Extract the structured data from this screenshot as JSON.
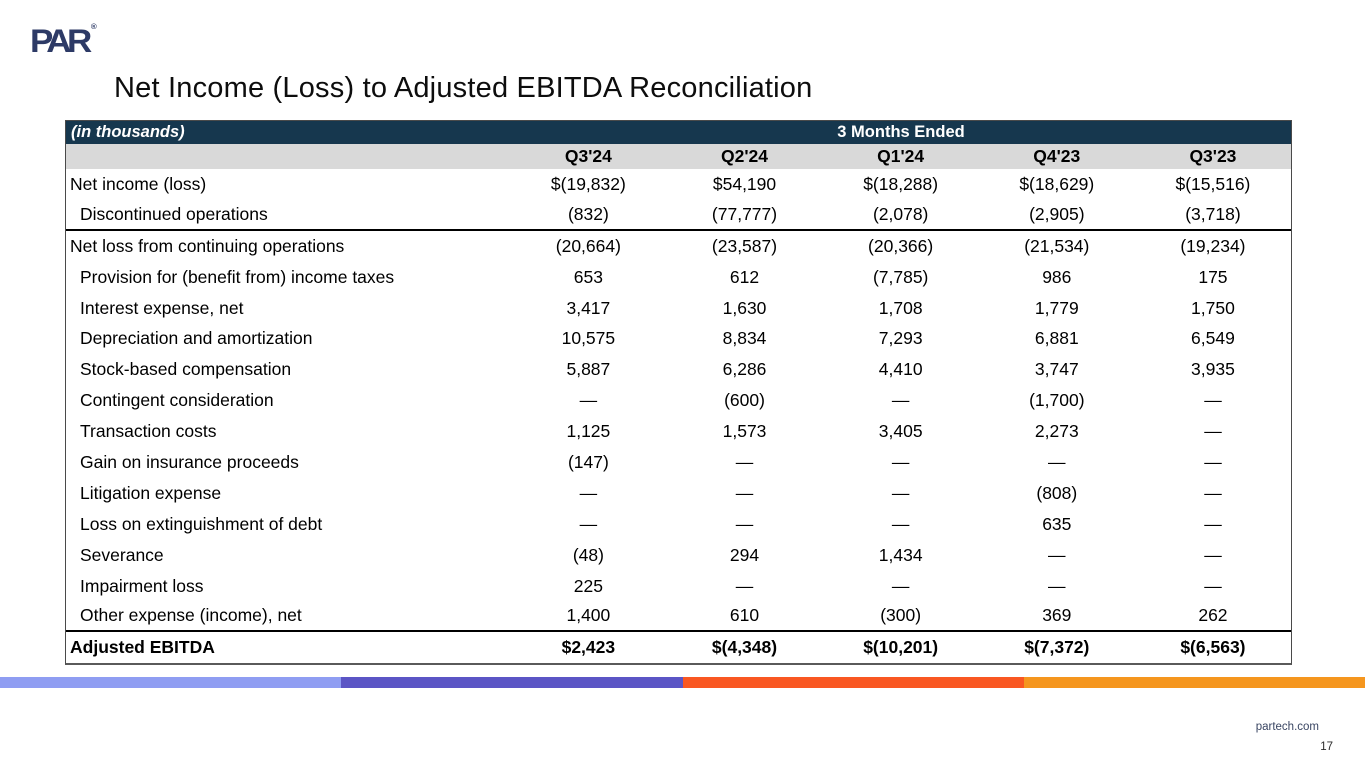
{
  "slide": {
    "logo_text": "PAR",
    "logo_reg": "®",
    "title": "Net Income (Loss) to Adjusted EBITDA Reconciliation",
    "footer_url": "partech.com",
    "page_number": "17"
  },
  "colors": {
    "navy": "#16374e",
    "gray": "#d9d9d9",
    "logo_navy": "#2d3a66",
    "stripe": [
      "#8f9df2",
      "#5b55c5",
      "#f95722",
      "#f5961e"
    ]
  },
  "table": {
    "units_label": "(in thousands)",
    "group_header": "3 Months Ended",
    "columns": [
      "Q3'24",
      "Q2'24",
      "Q1'24",
      "Q4'23",
      "Q3'23"
    ],
    "rows": [
      {
        "label": "Net income (loss)",
        "indent": false,
        "bold": false,
        "section_end": false,
        "values": [
          "$(19,832)",
          "$54,190",
          "$(18,288)",
          "$(18,629)",
          "$(15,516)"
        ]
      },
      {
        "label": "Discontinued operations",
        "indent": true,
        "bold": false,
        "section_end": true,
        "values": [
          "(832)",
          "(77,777)",
          "(2,078)",
          "(2,905)",
          "(3,718)"
        ]
      },
      {
        "label": "Net loss from continuing operations",
        "indent": false,
        "bold": false,
        "section_end": false,
        "values": [
          "(20,664)",
          "(23,587)",
          "(20,366)",
          "(21,534)",
          "(19,234)"
        ]
      },
      {
        "label": "Provision for (benefit from) income taxes",
        "indent": true,
        "bold": false,
        "section_end": false,
        "values": [
          "653",
          "612",
          "(7,785)",
          "986",
          "175"
        ]
      },
      {
        "label": "Interest expense, net",
        "indent": true,
        "bold": false,
        "section_end": false,
        "values": [
          "3,417",
          "1,630",
          "1,708",
          "1,779",
          "1,750"
        ]
      },
      {
        "label": "Depreciation and amortization",
        "indent": true,
        "bold": false,
        "section_end": false,
        "values": [
          "10,575",
          "8,834",
          "7,293",
          "6,881",
          "6,549"
        ]
      },
      {
        "label": "Stock-based compensation",
        "indent": true,
        "bold": false,
        "section_end": false,
        "values": [
          "5,887",
          "6,286",
          "4,410",
          "3,747",
          "3,935"
        ]
      },
      {
        "label": "Contingent consideration",
        "indent": true,
        "bold": false,
        "section_end": false,
        "values": [
          "—",
          "(600)",
          "—",
          "(1,700)",
          "—"
        ]
      },
      {
        "label": "Transaction costs",
        "indent": true,
        "bold": false,
        "section_end": false,
        "values": [
          "1,125",
          "1,573",
          "3,405",
          "2,273",
          "—"
        ]
      },
      {
        "label": "Gain on insurance proceeds",
        "indent": true,
        "bold": false,
        "section_end": false,
        "values": [
          "(147)",
          "—",
          "—",
          "—",
          "—"
        ]
      },
      {
        "label": "Litigation expense",
        "indent": true,
        "bold": false,
        "section_end": false,
        "values": [
          "—",
          "—",
          "—",
          "(808)",
          "—"
        ]
      },
      {
        "label": "Loss on extinguishment of debt",
        "indent": true,
        "bold": false,
        "section_end": false,
        "values": [
          "—",
          "—",
          "—",
          "635",
          "—"
        ]
      },
      {
        "label": "Severance",
        "indent": true,
        "bold": false,
        "section_end": false,
        "values": [
          "(48)",
          "294",
          "1,434",
          "—",
          "—"
        ]
      },
      {
        "label": "Impairment loss",
        "indent": true,
        "bold": false,
        "section_end": false,
        "values": [
          "225",
          "—",
          "—",
          "—",
          "—"
        ]
      },
      {
        "label": "Other expense (income), net",
        "indent": true,
        "bold": false,
        "section_end": true,
        "values": [
          "1,400",
          "610",
          "(300)",
          "369",
          "262"
        ]
      },
      {
        "label": "Adjusted EBITDA",
        "indent": false,
        "bold": true,
        "section_end": false,
        "values": [
          "$2,423",
          "$(4,348)",
          "$(10,201)",
          "$(7,372)",
          "$(6,563)"
        ]
      }
    ]
  }
}
